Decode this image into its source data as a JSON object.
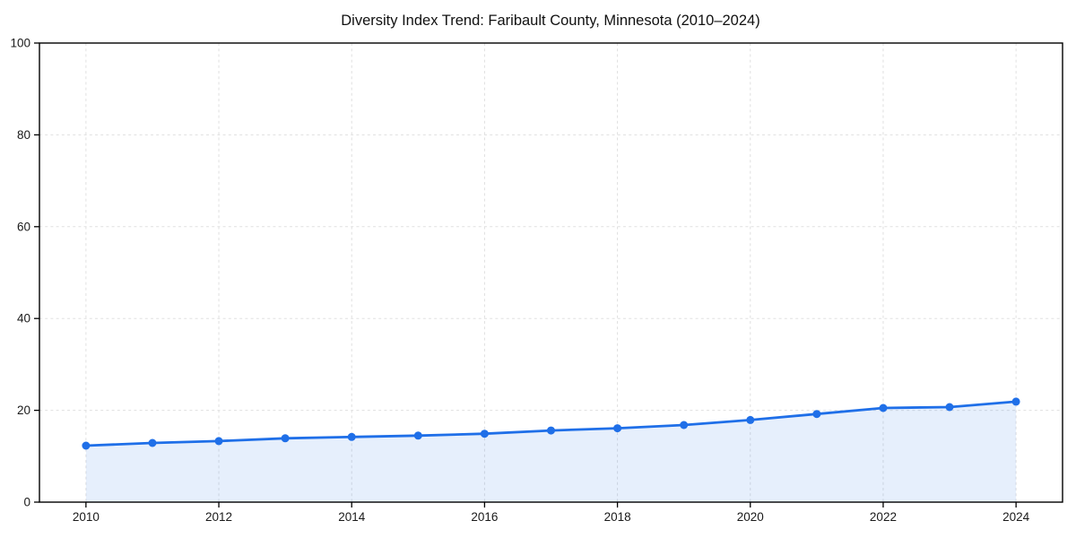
{
  "chart_data": {
    "type": "line",
    "title": "Diversity Index Trend: Faribault County, Minnesota (2010–2024)",
    "x": [
      2010,
      2011,
      2012,
      2013,
      2014,
      2015,
      2016,
      2017,
      2018,
      2019,
      2020,
      2021,
      2022,
      2023,
      2024
    ],
    "series": [
      {
        "name": "Diversity Index",
        "values": [
          12.3,
          12.9,
          13.3,
          13.9,
          14.2,
          14.5,
          14.9,
          15.6,
          16.1,
          16.8,
          17.9,
          19.2,
          20.5,
          20.7,
          21.9
        ]
      }
    ],
    "xlabel": "",
    "ylabel": "",
    "ylim": [
      0,
      100
    ],
    "xlim": [
      2009.3,
      2024.7
    ],
    "yticks": [
      0,
      20,
      40,
      60,
      80,
      100
    ],
    "xticks": [
      2010,
      2012,
      2014,
      2016,
      2018,
      2020,
      2022,
      2024
    ],
    "grid": "dashed-both-axes",
    "legend": "none",
    "marker": "circle",
    "area_fill": true,
    "colors": {
      "line": "#1f6fe8",
      "marker": "#1f6fe8",
      "area_fill": "rgba(31,111,232,0.11)",
      "grid": "#e0e0e0",
      "frame": "#000000",
      "tick": "#000000",
      "text": "#1a1a1a",
      "title": "#111111",
      "background": "#ffffff"
    }
  }
}
